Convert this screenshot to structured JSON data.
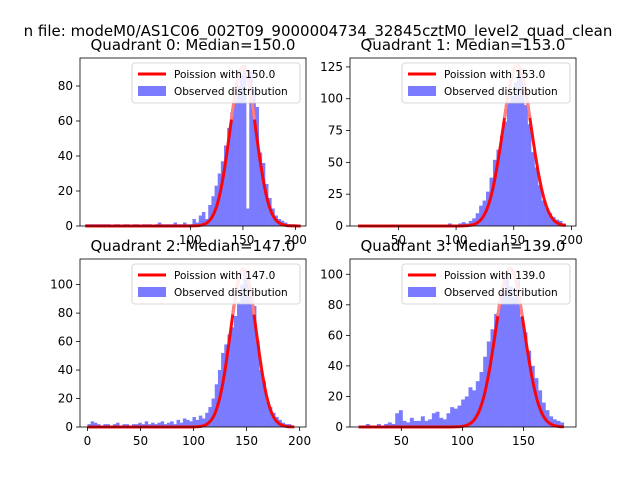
{
  "suptitle": "n file: modeM0/AS1C06_002T09_9000004734_32845cztM0_level2_quad_clean",
  "colors": {
    "hist": "#7b7bff",
    "poisson": "#ff0000",
    "axis": "#000000"
  },
  "chart_data": [
    {
      "type": "bar",
      "title": "Quadrant 0: Median=150.0",
      "legend": [
        "Poission with 150.0",
        "Observed distribution"
      ],
      "legend_placement": "top-right",
      "xlim": [
        -5,
        210
      ],
      "ylim": [
        0,
        96
      ],
      "xticks": [
        100,
        150,
        200
      ],
      "yticks": [
        0,
        20,
        40,
        60,
        80
      ],
      "poisson_mean": 150,
      "poisson_peak": 91,
      "poisson_range": [
        0,
        205
      ],
      "bins": [
        [
          0,
          3,
          1
        ],
        [
          3,
          6,
          1
        ],
        [
          6,
          9,
          1
        ],
        [
          9,
          12,
          1
        ],
        [
          12,
          15,
          1
        ],
        [
          15,
          18,
          1
        ],
        [
          18,
          21,
          1
        ],
        [
          21,
          24,
          1
        ],
        [
          24,
          27,
          0
        ],
        [
          27,
          30,
          1
        ],
        [
          30,
          33,
          1
        ],
        [
          33,
          36,
          0
        ],
        [
          36,
          39,
          1
        ],
        [
          39,
          42,
          1
        ],
        [
          42,
          45,
          0
        ],
        [
          45,
          48,
          1
        ],
        [
          48,
          51,
          1
        ],
        [
          51,
          54,
          0
        ],
        [
          54,
          57,
          1
        ],
        [
          57,
          60,
          1
        ],
        [
          60,
          63,
          1
        ],
        [
          63,
          66,
          0
        ],
        [
          66,
          69,
          1
        ],
        [
          69,
          72,
          2
        ],
        [
          72,
          75,
          1
        ],
        [
          75,
          78,
          1
        ],
        [
          78,
          81,
          1
        ],
        [
          81,
          84,
          1
        ],
        [
          84,
          87,
          2
        ],
        [
          87,
          90,
          1
        ],
        [
          90,
          93,
          1
        ],
        [
          93,
          96,
          2
        ],
        [
          96,
          99,
          1
        ],
        [
          99,
          102,
          1
        ],
        [
          102,
          105,
          4
        ],
        [
          105,
          108,
          2
        ],
        [
          108,
          111,
          6
        ],
        [
          111,
          114,
          8
        ],
        [
          114,
          117,
          4
        ],
        [
          117,
          120,
          12
        ],
        [
          120,
          123,
          17
        ],
        [
          123,
          126,
          23
        ],
        [
          126,
          129,
          30
        ],
        [
          129,
          132,
          37
        ],
        [
          132,
          135,
          46
        ],
        [
          135,
          138,
          56
        ],
        [
          138,
          141,
          65
        ],
        [
          141,
          144,
          72
        ],
        [
          144,
          147,
          80
        ],
        [
          147,
          150,
          86
        ],
        [
          150,
          153,
          92
        ],
        [
          153,
          156,
          10
        ],
        [
          156,
          159,
          88
        ],
        [
          159,
          162,
          78
        ],
        [
          162,
          165,
          68
        ],
        [
          165,
          168,
          42
        ],
        [
          168,
          171,
          36
        ],
        [
          171,
          174,
          24
        ],
        [
          174,
          177,
          16
        ],
        [
          177,
          180,
          10
        ],
        [
          180,
          183,
          6
        ],
        [
          183,
          186,
          4
        ],
        [
          186,
          189,
          3
        ],
        [
          189,
          192,
          2
        ],
        [
          192,
          195,
          1
        ],
        [
          195,
          198,
          1
        ],
        [
          198,
          201,
          1
        ],
        [
          201,
          204,
          0
        ]
      ]
    },
    {
      "type": "bar",
      "title": "Quadrant 1: Median=153.0",
      "legend": [
        "Poission with 153.0",
        "Observed distribution"
      ],
      "legend_placement": "top-right",
      "xlim": [
        8,
        204
      ],
      "ylim": [
        0,
        132
      ],
      "xticks": [
        50,
        100,
        150,
        200
      ],
      "yticks": [
        0,
        25,
        50,
        75,
        100,
        125
      ],
      "poisson_mean": 153,
      "poisson_peak": 126,
      "poisson_range": [
        15,
        195
      ],
      "bins": [
        [
          15,
          18,
          1
        ],
        [
          18,
          21,
          1
        ],
        [
          21,
          24,
          1
        ],
        [
          24,
          27,
          0
        ],
        [
          27,
          30,
          1
        ],
        [
          30,
          33,
          1
        ],
        [
          33,
          36,
          0
        ],
        [
          36,
          39,
          1
        ],
        [
          39,
          42,
          1
        ],
        [
          42,
          45,
          1
        ],
        [
          45,
          48,
          0
        ],
        [
          48,
          51,
          1
        ],
        [
          51,
          54,
          1
        ],
        [
          54,
          57,
          1
        ],
        [
          57,
          60,
          0
        ],
        [
          60,
          63,
          1
        ],
        [
          63,
          66,
          1
        ],
        [
          66,
          69,
          1
        ],
        [
          69,
          72,
          0
        ],
        [
          72,
          75,
          1
        ],
        [
          75,
          78,
          1
        ],
        [
          78,
          81,
          0
        ],
        [
          81,
          84,
          1
        ],
        [
          84,
          87,
          1
        ],
        [
          87,
          90,
          1
        ],
        [
          90,
          93,
          1
        ],
        [
          93,
          96,
          2
        ],
        [
          96,
          99,
          1
        ],
        [
          99,
          102,
          1
        ],
        [
          102,
          105,
          2
        ],
        [
          105,
          108,
          3
        ],
        [
          108,
          111,
          2
        ],
        [
          111,
          114,
          4
        ],
        [
          114,
          117,
          6
        ],
        [
          117,
          120,
          10
        ],
        [
          120,
          123,
          16
        ],
        [
          123,
          126,
          20
        ],
        [
          126,
          129,
          27
        ],
        [
          129,
          132,
          38
        ],
        [
          132,
          135,
          52
        ],
        [
          135,
          138,
          60
        ],
        [
          138,
          141,
          71
        ],
        [
          141,
          144,
          82
        ],
        [
          144,
          147,
          97
        ],
        [
          147,
          150,
          102
        ],
        [
          150,
          153,
          113
        ],
        [
          153,
          156,
          120
        ],
        [
          156,
          159,
          124
        ],
        [
          159,
          162,
          95
        ],
        [
          162,
          165,
          80
        ],
        [
          165,
          168,
          58
        ],
        [
          168,
          171,
          46
        ],
        [
          171,
          174,
          32
        ],
        [
          174,
          177,
          20
        ],
        [
          177,
          180,
          14
        ],
        [
          180,
          183,
          10
        ],
        [
          183,
          186,
          7
        ],
        [
          186,
          189,
          5
        ],
        [
          189,
          192,
          4
        ],
        [
          192,
          195,
          2
        ]
      ]
    },
    {
      "type": "bar",
      "title": "Quadrant 2: Median=147.0",
      "legend": [
        "Poission with 147.0",
        "Observed distribution"
      ],
      "legend_placement": "top-right",
      "xlim": [
        -7,
        206
      ],
      "ylim": [
        0,
        118
      ],
      "xticks": [
        0,
        50,
        100,
        150,
        200
      ],
      "yticks": [
        0,
        20,
        40,
        60,
        80,
        100
      ],
      "poisson_mean": 147,
      "poisson_peak": 111,
      "poisson_range": [
        0,
        195
      ],
      "bins": [
        [
          0,
          3,
          2
        ],
        [
          3,
          6,
          4
        ],
        [
          6,
          9,
          3
        ],
        [
          9,
          12,
          2
        ],
        [
          12,
          15,
          1
        ],
        [
          15,
          18,
          2
        ],
        [
          18,
          21,
          2
        ],
        [
          21,
          24,
          1
        ],
        [
          24,
          27,
          2
        ],
        [
          27,
          30,
          3
        ],
        [
          30,
          33,
          1
        ],
        [
          33,
          36,
          2
        ],
        [
          36,
          39,
          2
        ],
        [
          39,
          42,
          1
        ],
        [
          42,
          45,
          2
        ],
        [
          45,
          48,
          2
        ],
        [
          48,
          51,
          3
        ],
        [
          51,
          54,
          2
        ],
        [
          54,
          57,
          4
        ],
        [
          57,
          60,
          2
        ],
        [
          60,
          63,
          3
        ],
        [
          63,
          66,
          2
        ],
        [
          66,
          69,
          3
        ],
        [
          69,
          72,
          4
        ],
        [
          72,
          75,
          2
        ],
        [
          75,
          78,
          3
        ],
        [
          78,
          81,
          4
        ],
        [
          81,
          84,
          2
        ],
        [
          84,
          87,
          5
        ],
        [
          87,
          90,
          3
        ],
        [
          90,
          93,
          6
        ],
        [
          93,
          96,
          5
        ],
        [
          96,
          99,
          4
        ],
        [
          99,
          102,
          7
        ],
        [
          102,
          105,
          5
        ],
        [
          105,
          108,
          8
        ],
        [
          108,
          111,
          6
        ],
        [
          111,
          114,
          10
        ],
        [
          114,
          117,
          14
        ],
        [
          117,
          120,
          20
        ],
        [
          120,
          123,
          30
        ],
        [
          123,
          126,
          40
        ],
        [
          126,
          129,
          52
        ],
        [
          129,
          132,
          58
        ],
        [
          132,
          135,
          65
        ],
        [
          135,
          138,
          70
        ],
        [
          138,
          141,
          78
        ],
        [
          141,
          144,
          88
        ],
        [
          144,
          147,
          100
        ],
        [
          147,
          150,
          110
        ],
        [
          150,
          153,
          105
        ],
        [
          153,
          156,
          92
        ],
        [
          156,
          159,
          85
        ],
        [
          159,
          162,
          60
        ],
        [
          162,
          165,
          40
        ],
        [
          165,
          168,
          32
        ],
        [
          168,
          171,
          18
        ],
        [
          171,
          174,
          14
        ],
        [
          174,
          177,
          10
        ],
        [
          177,
          180,
          7
        ],
        [
          180,
          183,
          5
        ],
        [
          183,
          186,
          3
        ],
        [
          186,
          189,
          2
        ],
        [
          189,
          192,
          2
        ]
      ]
    },
    {
      "type": "bar",
      "title": "Quadrant 3: Median=139.0",
      "legend": [
        "Poission with 139.0",
        "Observed distribution"
      ],
      "legend_placement": "top-right",
      "xlim": [
        8,
        193
      ],
      "ylim": [
        0,
        110
      ],
      "xticks": [
        50,
        100,
        150
      ],
      "yticks": [
        0,
        20,
        40,
        60,
        80,
        100
      ],
      "poisson_mean": 139,
      "poisson_peak": 104,
      "poisson_range": [
        15,
        183
      ],
      "bins": [
        [
          15,
          18,
          1
        ],
        [
          18,
          21,
          1
        ],
        [
          21,
          24,
          2
        ],
        [
          24,
          27,
          1
        ],
        [
          27,
          30,
          1
        ],
        [
          30,
          33,
          2
        ],
        [
          33,
          36,
          1
        ],
        [
          36,
          39,
          2
        ],
        [
          39,
          42,
          3
        ],
        [
          42,
          45,
          2
        ],
        [
          45,
          48,
          9
        ],
        [
          48,
          51,
          11
        ],
        [
          51,
          54,
          4
        ],
        [
          54,
          57,
          3
        ],
        [
          57,
          60,
          6
        ],
        [
          60,
          63,
          4
        ],
        [
          63,
          66,
          4
        ],
        [
          66,
          69,
          7
        ],
        [
          69,
          72,
          4
        ],
        [
          72,
          75,
          5
        ],
        [
          75,
          78,
          9
        ],
        [
          78,
          81,
          10
        ],
        [
          81,
          84,
          6
        ],
        [
          84,
          87,
          5
        ],
        [
          87,
          90,
          9
        ],
        [
          90,
          93,
          13
        ],
        [
          93,
          96,
          12
        ],
        [
          96,
          99,
          14
        ],
        [
          99,
          102,
          18
        ],
        [
          102,
          105,
          20
        ],
        [
          105,
          108,
          26
        ],
        [
          108,
          111,
          24
        ],
        [
          111,
          114,
          30
        ],
        [
          114,
          117,
          36
        ],
        [
          117,
          120,
          46
        ],
        [
          120,
          123,
          56
        ],
        [
          123,
          126,
          64
        ],
        [
          126,
          129,
          74
        ],
        [
          129,
          132,
          82
        ],
        [
          132,
          135,
          88
        ],
        [
          135,
          138,
          100
        ],
        [
          138,
          141,
          92
        ],
        [
          141,
          144,
          85
        ],
        [
          144,
          147,
          96
        ],
        [
          147,
          150,
          72
        ],
        [
          150,
          153,
          62
        ],
        [
          153,
          156,
          50
        ],
        [
          156,
          159,
          40
        ],
        [
          159,
          162,
          32
        ],
        [
          162,
          165,
          24
        ],
        [
          165,
          168,
          16
        ],
        [
          168,
          171,
          11
        ],
        [
          171,
          174,
          7
        ],
        [
          174,
          177,
          5
        ],
        [
          177,
          180,
          4
        ],
        [
          180,
          183,
          3
        ]
      ]
    }
  ]
}
